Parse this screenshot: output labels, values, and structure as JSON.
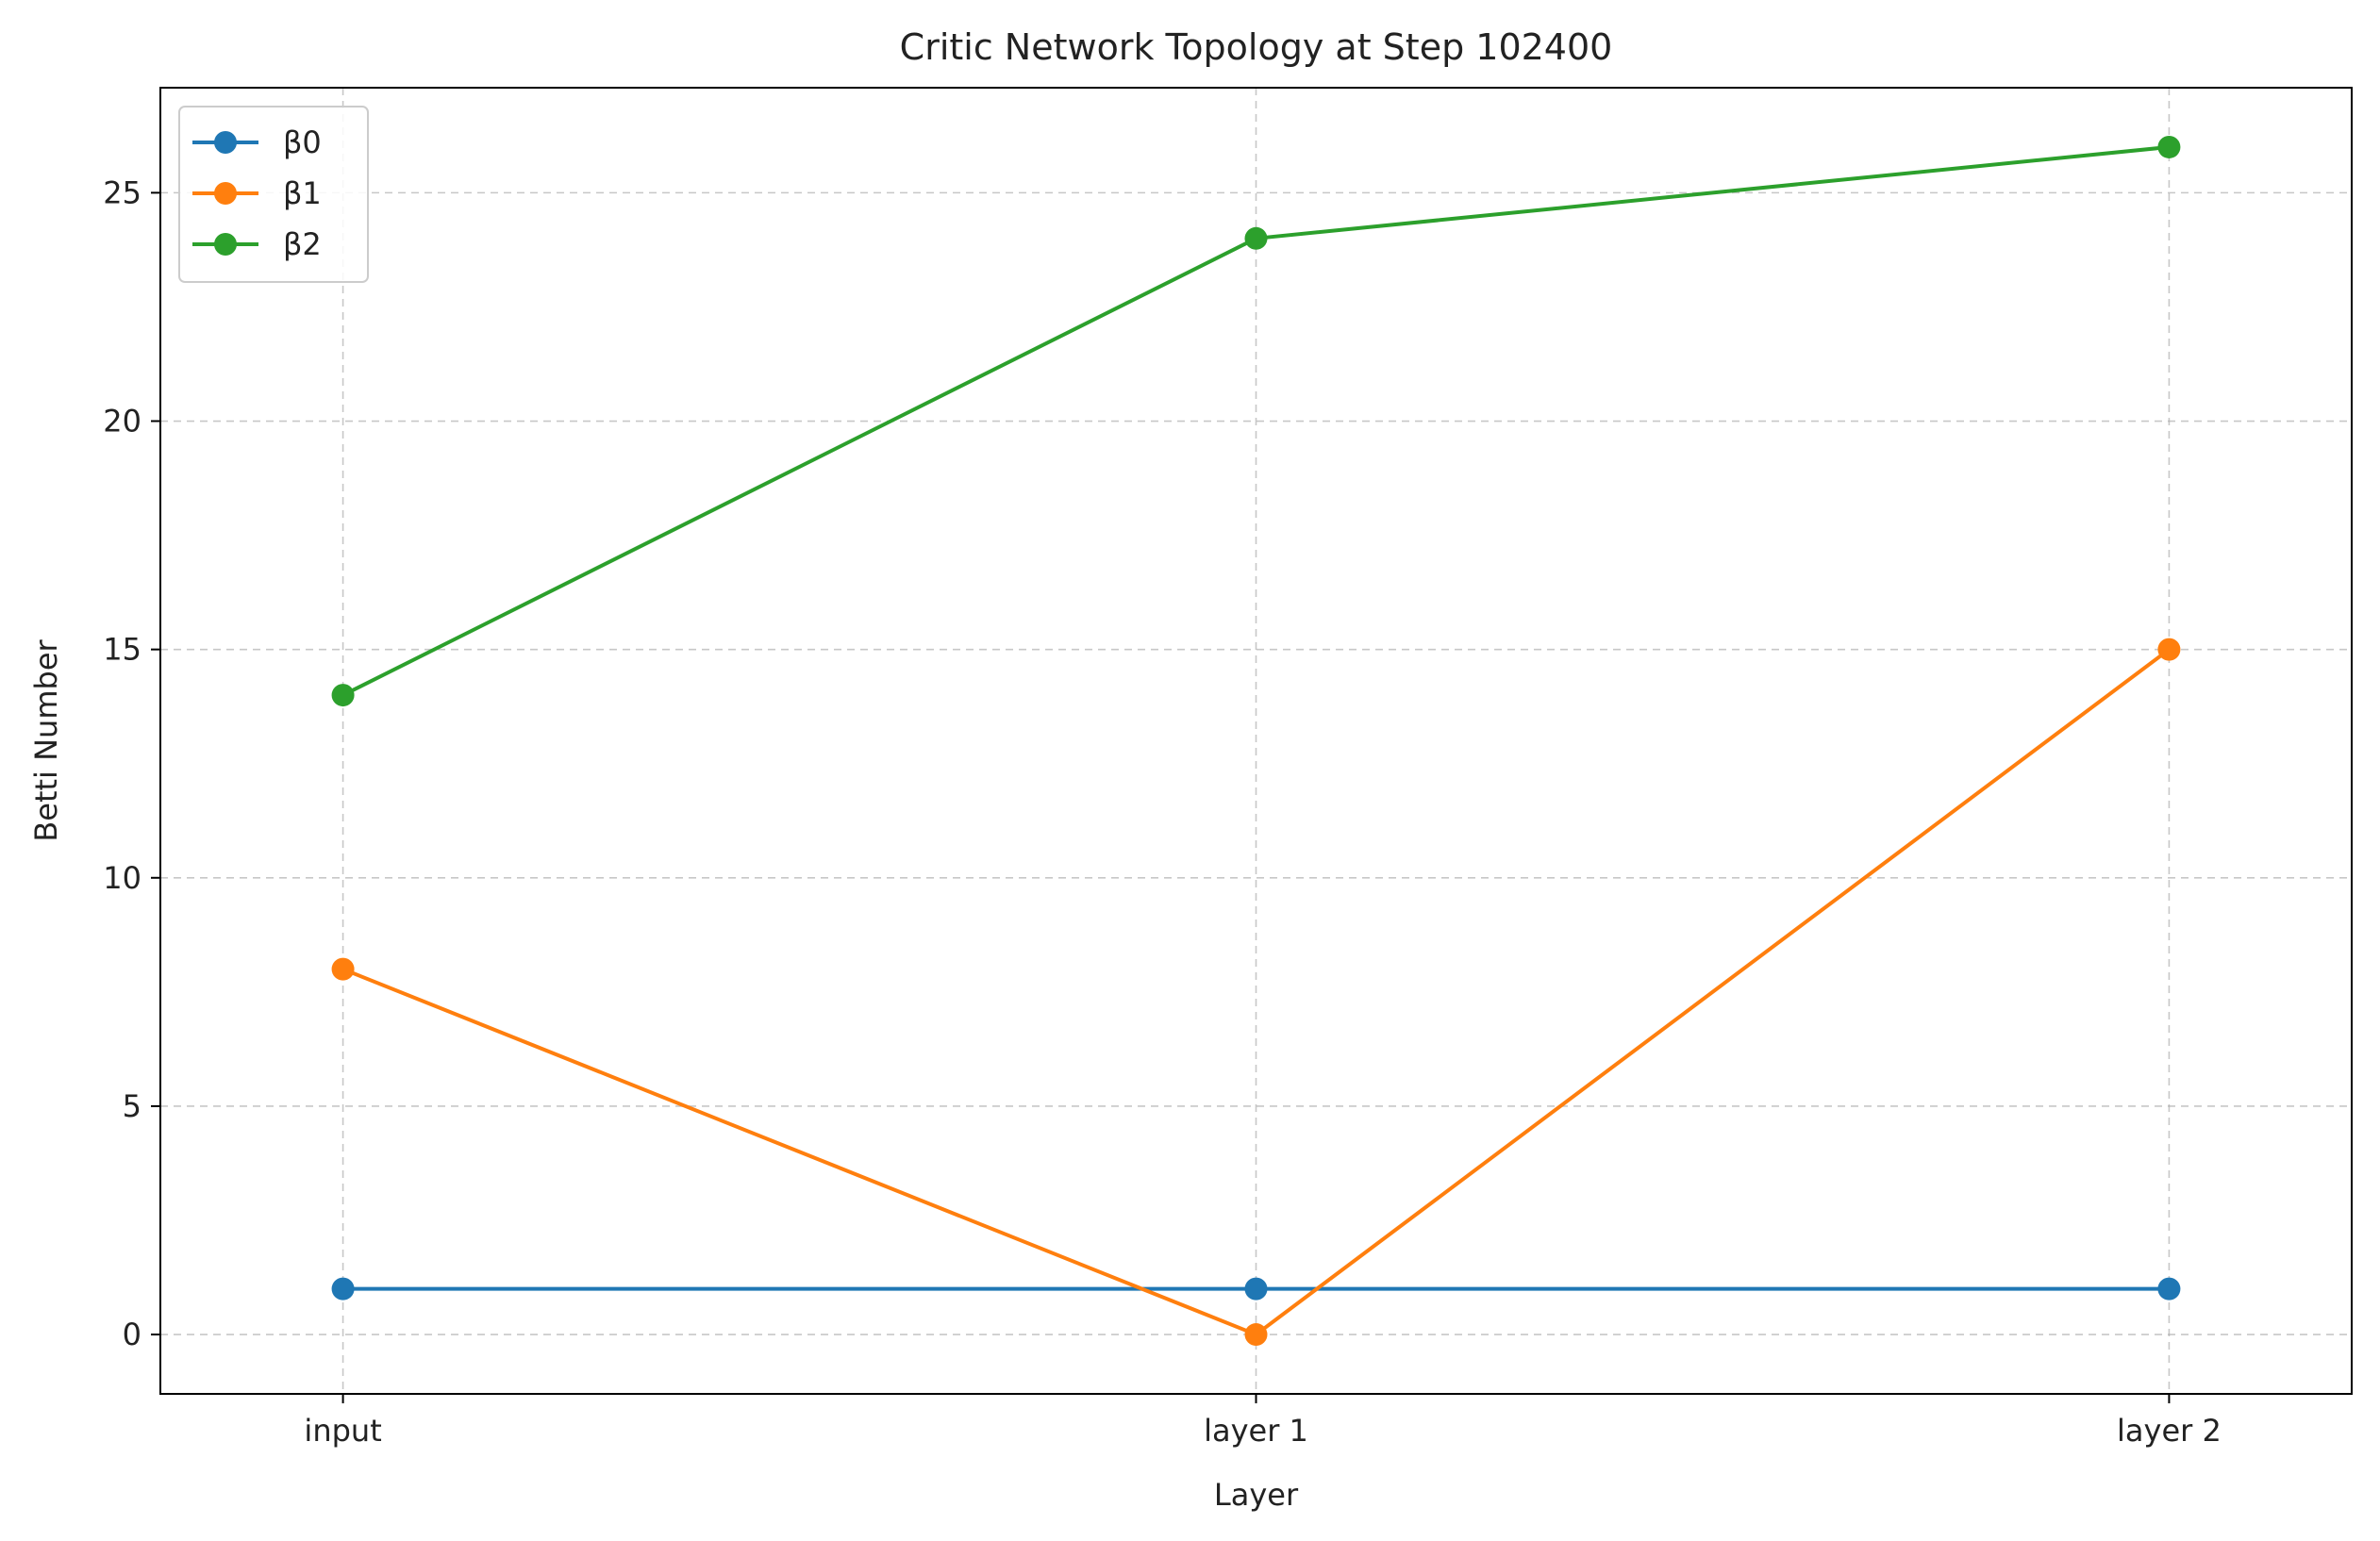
{
  "chart_data": {
    "type": "line",
    "title": "Critic Network Topology at Step 102400",
    "xlabel": "Layer",
    "ylabel": "Betti Number",
    "categories": [
      "input",
      "layer 1",
      "layer 2"
    ],
    "ylim": [
      -1.3,
      27.3
    ],
    "yticks": [
      0,
      5,
      10,
      15,
      20,
      25
    ],
    "grid": true,
    "grid_style": "dashed",
    "legend_position": "top-left",
    "series": [
      {
        "name": "β0",
        "values": [
          1,
          1,
          1
        ],
        "color": "#1f77b4"
      },
      {
        "name": "β1",
        "values": [
          8,
          0,
          15
        ],
        "color": "#ff7f0e"
      },
      {
        "name": "β2",
        "values": [
          14,
          24,
          26
        ],
        "color": "#2ca02c"
      }
    ]
  }
}
